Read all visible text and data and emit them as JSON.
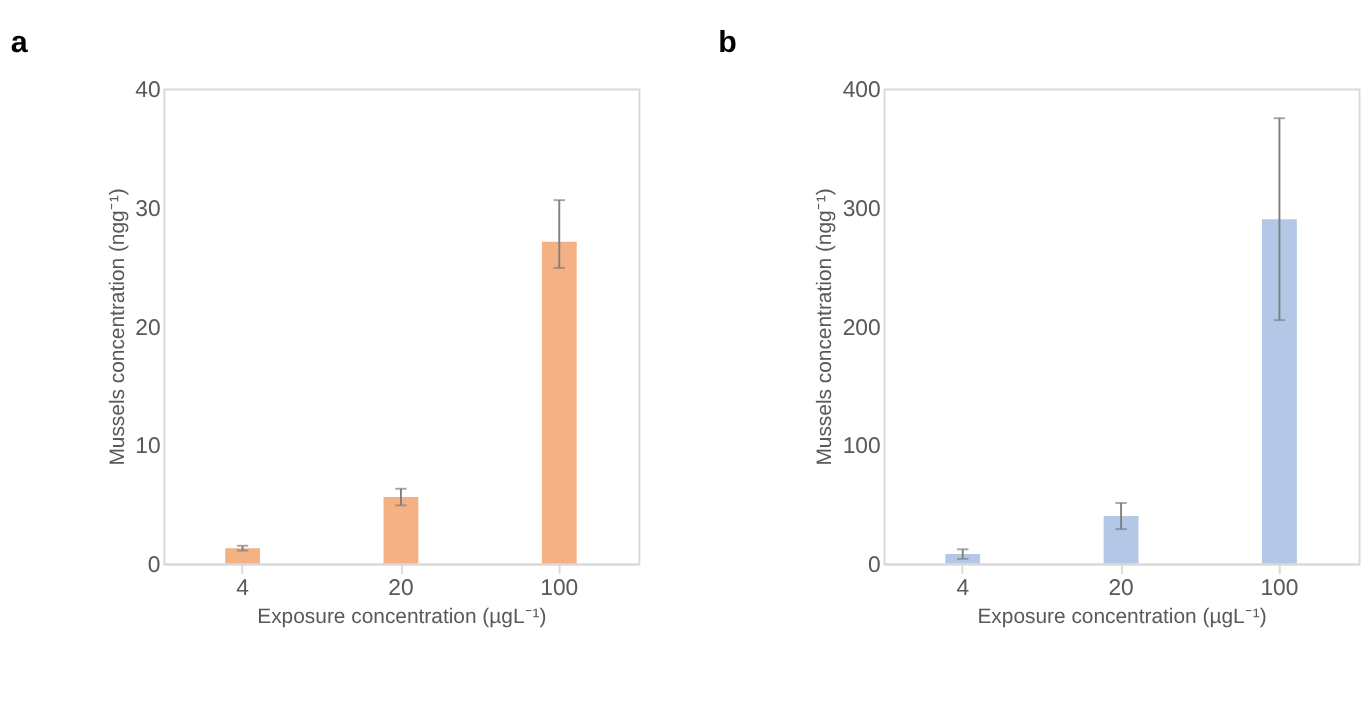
{
  "chart_data": [
    {
      "type": "bar",
      "title": "a",
      "categories": [
        "4",
        "20",
        "100"
      ],
      "values": [
        1.3,
        5.6,
        27.1
      ],
      "errors": [
        0.2,
        0.7,
        [
          24.9,
          30.6
        ]
      ],
      "color": "#f4b183",
      "xlabel": "Exposure concentration (µgL⁻¹)",
      "ylabel": "Mussels concentration (ngg⁻¹)",
      "ylim": [
        0,
        40
      ],
      "yticks": [
        0,
        10,
        20,
        30,
        40
      ],
      "grid": false
    },
    {
      "type": "bar",
      "title": "b",
      "categories": [
        "4",
        "20",
        "100"
      ],
      "values": [
        8,
        40,
        290
      ],
      "errors": [
        4,
        11,
        85
      ],
      "color": "#b4c7e7",
      "xlabel": "Exposure concentration (µgL⁻¹)",
      "ylabel": "Mussels concentration (ngg⁻¹)",
      "ylim": [
        0,
        400
      ],
      "yticks": [
        0,
        100,
        200,
        300,
        400
      ],
      "grid": false
    }
  ]
}
